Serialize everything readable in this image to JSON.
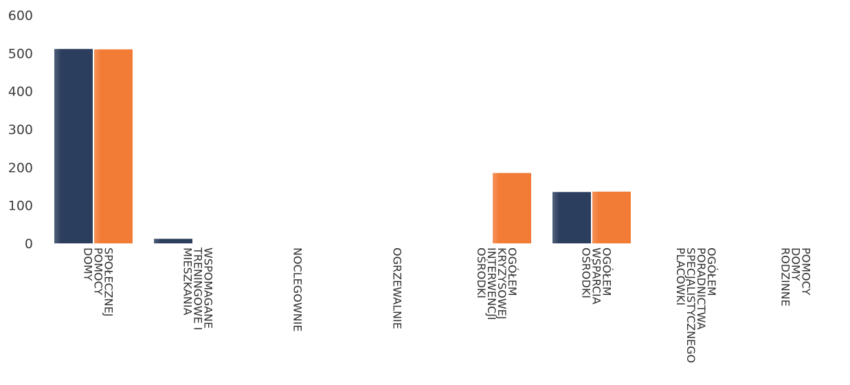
{
  "chart_data": {
    "type": "bar",
    "categories": [
      [
        "DOMY",
        "POMOCY",
        "SPOŁECZNEJ"
      ],
      [
        "MIESZKANIA",
        "TRENINGOWE I",
        "WSPOMAGANE"
      ],
      [
        "NOCLEGOWNIE"
      ],
      [
        "OGRZEWALNIE"
      ],
      [
        "OŚRODKI",
        "INTERWENCJI",
        "KRYZYSOWEJ",
        "OGÓŁEM"
      ],
      [
        "OŚRODKI",
        "WSPARCIA",
        "OGÓŁEM"
      ],
      [
        "PLACÓWKI",
        "SPECJALISTYCZNEGO",
        "PORADNICTWA",
        "OGÓŁEM"
      ],
      [
        "RODZINNE",
        "DOMY",
        "POMOCY"
      ]
    ],
    "series": [
      {
        "color": "#2b3e5e",
        "values": [
          511,
          12,
          0,
          0,
          0,
          135,
          0,
          0
        ]
      },
      {
        "color": "#f27b35",
        "values": [
          510,
          0,
          0,
          0,
          185,
          136,
          0,
          0
        ]
      }
    ],
    "ylim": [
      0,
      600
    ],
    "yticks": [
      "0",
      "100",
      "200",
      "300",
      "400",
      "500",
      "600"
    ],
    "grid": false,
    "legend": "none"
  }
}
